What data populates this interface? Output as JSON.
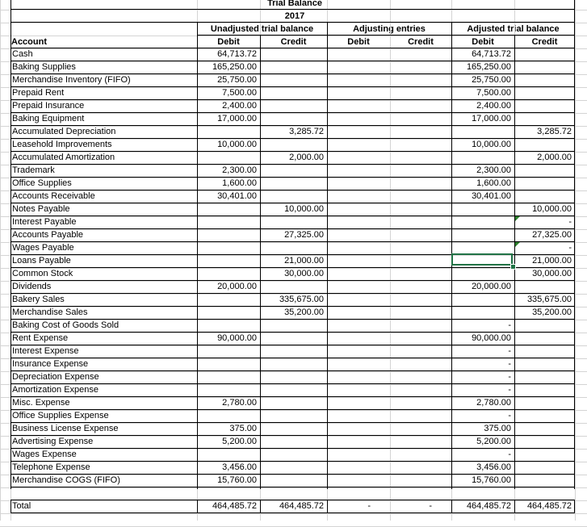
{
  "title": "Trial Balance",
  "year": "2017",
  "headers": {
    "unadjusted": "Unadjusted trial balance",
    "adjusting": "Adjusting entries",
    "adjusted": "Adjusted trial balance",
    "account": "Account",
    "debit": "Debit",
    "credit": "Credit"
  },
  "rows": [
    {
      "account": "Cash",
      "ud": "64,713.72",
      "uc": "",
      "ad": "",
      "ac": "",
      "fd": "64,713.72",
      "fc": ""
    },
    {
      "account": "Baking Supplies",
      "ud": "165,250.00",
      "uc": "",
      "ad": "",
      "ac": "",
      "fd": "165,250.00",
      "fc": ""
    },
    {
      "account": "Merchandise Inventory (FIFO)",
      "ud": "25,750.00",
      "uc": "",
      "ad": "",
      "ac": "",
      "fd": "25,750.00",
      "fc": ""
    },
    {
      "account": "Prepaid Rent",
      "ud": "7,500.00",
      "uc": "",
      "ad": "",
      "ac": "",
      "fd": "7,500.00",
      "fc": ""
    },
    {
      "account": "Prepaid Insurance",
      "ud": "2,400.00",
      "uc": "",
      "ad": "",
      "ac": "",
      "fd": "2,400.00",
      "fc": ""
    },
    {
      "account": "Baking Equipment",
      "ud": "17,000.00",
      "uc": "",
      "ad": "",
      "ac": "",
      "fd": "17,000.00",
      "fc": ""
    },
    {
      "account": "Accumulated Depreciation",
      "ud": "",
      "uc": "3,285.72",
      "ad": "",
      "ac": "",
      "fd": "",
      "fc": "3,285.72"
    },
    {
      "account": "Leasehold Improvements",
      "ud": "10,000.00",
      "uc": "",
      "ad": "",
      "ac": "",
      "fd": "10,000.00",
      "fc": ""
    },
    {
      "account": "Accumulated Amortization",
      "ud": "",
      "uc": "2,000.00",
      "ad": "",
      "ac": "",
      "fd": "",
      "fc": "2,000.00"
    },
    {
      "account": "Trademark",
      "ud": "2,300.00",
      "uc": "",
      "ad": "",
      "ac": "",
      "fd": "2,300.00",
      "fc": ""
    },
    {
      "account": "Office Supplies",
      "ud": "1,600.00",
      "uc": "",
      "ad": "",
      "ac": "",
      "fd": "1,600.00",
      "fc": ""
    },
    {
      "account": "Accounts Receivable",
      "ud": "30,401.00",
      "uc": "",
      "ad": "",
      "ac": "",
      "fd": "30,401.00",
      "fc": ""
    },
    {
      "account": "Notes Payable",
      "ud": "",
      "uc": "10,000.00",
      "ad": "",
      "ac": "",
      "fd": "",
      "fc": "10,000.00"
    },
    {
      "account": "Interest Payable",
      "ud": "",
      "uc": "",
      "ad": "",
      "ac": "",
      "fd": "",
      "fc": "-"
    },
    {
      "account": "Accounts Payable",
      "ud": "",
      "uc": "27,325.00",
      "ad": "",
      "ac": "",
      "fd": "",
      "fc": "27,325.00"
    },
    {
      "account": "Wages Payable",
      "ud": "",
      "uc": "",
      "ad": "",
      "ac": "",
      "fd": "",
      "fc": "-"
    },
    {
      "account": "Loans Payable",
      "ud": "",
      "uc": "21,000.00",
      "ad": "",
      "ac": "",
      "fd": "",
      "fc": "21,000.00"
    },
    {
      "account": "Common Stock",
      "ud": "",
      "uc": "30,000.00",
      "ad": "",
      "ac": "",
      "fd": "",
      "fc": "30,000.00"
    },
    {
      "account": "Dividends",
      "ud": "20,000.00",
      "uc": "",
      "ad": "",
      "ac": "",
      "fd": "20,000.00",
      "fc": ""
    },
    {
      "account": "Bakery Sales",
      "ud": "",
      "uc": "335,675.00",
      "ad": "",
      "ac": "",
      "fd": "",
      "fc": "335,675.00"
    },
    {
      "account": "Merchandise Sales",
      "ud": "",
      "uc": "35,200.00",
      "ad": "",
      "ac": "",
      "fd": "",
      "fc": "35,200.00"
    },
    {
      "account": "Baking Cost of Goods Sold",
      "ud": "",
      "uc": "",
      "ad": "",
      "ac": "",
      "fd": "-",
      "fc": ""
    },
    {
      "account": "Rent Expense",
      "ud": "90,000.00",
      "uc": "",
      "ad": "",
      "ac": "",
      "fd": "90,000.00",
      "fc": ""
    },
    {
      "account": "Interest Expense",
      "ud": "",
      "uc": "",
      "ad": "",
      "ac": "",
      "fd": "-",
      "fc": ""
    },
    {
      "account": "Insurance Expense",
      "ud": "",
      "uc": "",
      "ad": "",
      "ac": "",
      "fd": "-",
      "fc": ""
    },
    {
      "account": "Depreciation Expense",
      "ud": "",
      "uc": "",
      "ad": "",
      "ac": "",
      "fd": "-",
      "fc": ""
    },
    {
      "account": "Amortization Expense",
      "ud": "",
      "uc": "",
      "ad": "",
      "ac": "",
      "fd": "-",
      "fc": ""
    },
    {
      "account": "Misc. Expense",
      "ud": "2,780.00",
      "uc": "",
      "ad": "",
      "ac": "",
      "fd": "2,780.00",
      "fc": ""
    },
    {
      "account": "Office Supplies Expense",
      "ud": "",
      "uc": "",
      "ad": "",
      "ac": "",
      "fd": "-",
      "fc": ""
    },
    {
      "account": "Business License Expense",
      "ud": "375.00",
      "uc": "",
      "ad": "",
      "ac": "",
      "fd": "375.00",
      "fc": ""
    },
    {
      "account": "Advertising Expense",
      "ud": "5,200.00",
      "uc": "",
      "ad": "",
      "ac": "",
      "fd": "5,200.00",
      "fc": ""
    },
    {
      "account": "Wages Expense",
      "ud": "",
      "uc": "",
      "ad": "",
      "ac": "",
      "fd": "-",
      "fc": ""
    },
    {
      "account": "Telephone Expense",
      "ud": "3,456.00",
      "uc": "",
      "ad": "",
      "ac": "",
      "fd": "3,456.00",
      "fc": ""
    },
    {
      "account": "Merchandise COGS (FIFO)",
      "ud": "15,760.00",
      "uc": "",
      "ad": "",
      "ac": "",
      "fd": "15,760.00",
      "fc": ""
    }
  ],
  "total": {
    "account": "Total",
    "ud": "464,485.72",
    "uc": "464,485.72",
    "ad": "-",
    "ac": "-",
    "fd": "464,485.72",
    "fc": "464,485.72"
  },
  "selected_cell": {
    "row_account": "Loans Payable",
    "column": "Adjusted trial balance Debit"
  }
}
